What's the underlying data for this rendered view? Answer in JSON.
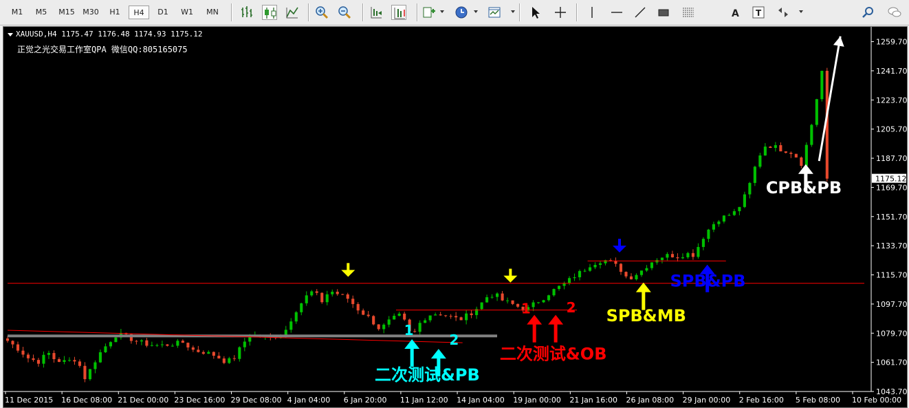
{
  "toolbar": {
    "timeframes": [
      "M1",
      "M5",
      "M15",
      "M30",
      "H1",
      "H4",
      "D1",
      "W1",
      "MN"
    ],
    "active_timeframe": "H4",
    "icons": [
      "bar-chart-icon",
      "candlestick-icon",
      "line-chart-icon",
      "zoom-in-icon",
      "zoom-out-icon",
      "chart-shift-icon",
      "autoscroll-icon",
      "indicators-icon",
      "periods-icon",
      "templates-icon",
      "cursor-icon",
      "crosshair-icon",
      "vertical-line-icon",
      "horizontal-line-icon",
      "trendline-icon",
      "rectangle-icon",
      "fibonacci-icon",
      "text-icon",
      "text-label-icon",
      "arrows-icon",
      "search-icon",
      "chat-icon"
    ]
  },
  "chart_header": {
    "symbol_line": "XAUUSD,H4  1175.47 1176.48 1174.93 1175.12",
    "watermark": "正觉之光交易工作室QPA 微信QQ:805165075"
  },
  "chart_data": {
    "type": "candlestick",
    "symbol": "XAUUSD",
    "timeframe": "H4",
    "ohlc_last": {
      "open": 1175.47,
      "high": 1176.48,
      "low": 1174.93,
      "close": 1175.12
    },
    "current_price": 1175.12,
    "ylim": [
      1043.7,
      1268.0
    ],
    "y_ticks": [
      1259.7,
      1241.7,
      1223.7,
      1205.7,
      1187.7,
      1169.7,
      1151.7,
      1133.7,
      1115.7,
      1097.7,
      1079.7,
      1061.7,
      1043.7
    ],
    "x_ticks": [
      "11 Dec 2015",
      "16 Dec 08:00",
      "21 Dec 00:00",
      "23 Dec 16:00",
      "29 Dec 08:00",
      "4 Jan 04:00",
      "6 Jan 20:00",
      "11 Jan 12:00",
      "14 Jan 04:00",
      "19 Jan 00:00",
      "21 Jan 16:00",
      "26 Jan 08:00",
      "29 Jan 00:00",
      "2 Feb 16:00",
      "5 Feb 08:00",
      "10 Feb 00:00"
    ],
    "bars_count": 160,
    "close_path": [
      [
        0,
        1075
      ],
      [
        4,
        1070
      ],
      [
        8,
        1064
      ],
      [
        12,
        1062
      ],
      [
        15,
        1068
      ],
      [
        18,
        1063
      ],
      [
        22,
        1062
      ],
      [
        26,
        1064
      ],
      [
        29,
        1052
      ],
      [
        31,
        1057
      ],
      [
        34,
        1066
      ],
      [
        38,
        1074
      ],
      [
        41,
        1079
      ],
      [
        44,
        1078
      ],
      [
        48,
        1075
      ],
      [
        52,
        1073
      ],
      [
        57,
        1072
      ],
      [
        62,
        1073
      ],
      [
        66,
        1074
      ],
      [
        70,
        1069
      ],
      [
        74,
        1068
      ],
      [
        78,
        1066
      ],
      [
        82,
        1062
      ],
      [
        85,
        1064
      ],
      [
        88,
        1072
      ],
      [
        91,
        1079
      ],
      [
        94,
        1078
      ],
      [
        98,
        1077
      ],
      [
        101,
        1078
      ],
      [
        104,
        1080
      ],
      [
        108,
        1093
      ],
      [
        112,
        1102
      ],
      [
        115,
        1106
      ],
      [
        118,
        1099
      ],
      [
        121,
        1106
      ],
      [
        124,
        1104
      ],
      [
        128,
        1101
      ],
      [
        132,
        1094
      ],
      [
        136,
        1089
      ],
      [
        140,
        1082
      ],
      [
        144,
        1088
      ],
      [
        148,
        1091
      ],
      [
        152,
        1077
      ],
      [
        155,
        1086
      ],
      [
        158,
        1091
      ],
      [
        162,
        1092
      ],
      [
        166,
        1090
      ],
      [
        170,
        1088
      ],
      [
        174,
        1092
      ],
      [
        177,
        1096
      ],
      [
        180,
        1102
      ],
      [
        183,
        1104
      ],
      [
        186,
        1100
      ],
      [
        189,
        1098
      ],
      [
        192,
        1096
      ],
      [
        195,
        1094
      ],
      [
        198,
        1098
      ],
      [
        201,
        1101
      ],
      [
        204,
        1105
      ],
      [
        207,
        1108
      ],
      [
        210,
        1111
      ],
      [
        213,
        1115
      ],
      [
        216,
        1118
      ],
      [
        219,
        1122
      ],
      [
        222,
        1124
      ],
      [
        224,
        1125
      ],
      [
        226,
        1124
      ],
      [
        228,
        1122
      ],
      [
        230,
        1120
      ],
      [
        232,
        1115
      ],
      [
        234,
        1114
      ],
      [
        236,
        1116
      ],
      [
        238,
        1118
      ],
      [
        240,
        1121
      ],
      [
        243,
        1125
      ],
      [
        246,
        1127
      ],
      [
        249,
        1128
      ],
      [
        252,
        1127
      ],
      [
        255,
        1129
      ],
      [
        258,
        1128
      ],
      [
        261,
        1138
      ],
      [
        264,
        1145
      ],
      [
        267,
        1150
      ],
      [
        270,
        1152
      ],
      [
        273,
        1154
      ],
      [
        276,
        1160
      ],
      [
        279,
        1172
      ],
      [
        282,
        1188
      ],
      [
        285,
        1196
      ],
      [
        288,
        1195
      ],
      [
        291,
        1193
      ],
      [
        294,
        1192
      ],
      [
        297,
        1188
      ],
      [
        298,
        1182
      ],
      [
        299,
        1190
      ],
      [
        301,
        1199
      ],
      [
        303,
        1215
      ],
      [
        305,
        1232
      ],
      [
        307,
        1250
      ],
      [
        308,
        1242
      ]
    ],
    "horizontal_lines": [
      {
        "color": "#ff0000",
        "price": 1110.5,
        "from_index": 0,
        "to_index": 322
      },
      {
        "color": "#808080",
        "price": 1078.0,
        "from_index": 0,
        "to_index": 184,
        "width": 4
      },
      {
        "color": "#ff0000",
        "price": 1094.0,
        "from_index": 146,
        "to_index": 214
      },
      {
        "color": "#ff0000",
        "price": 1124.3,
        "from_index": 218,
        "to_index": 270
      }
    ],
    "trendlines": [
      {
        "color": "#ff0000",
        "from": [
          0,
          1081.5
        ],
        "to": [
          171,
          1073.8
        ]
      },
      {
        "color": "#ffffff",
        "from": [
          305,
          1186
        ],
        "to": [
          313,
          1263
        ],
        "arrow": true
      }
    ],
    "arrow_marks": [
      {
        "color": "#ffff00",
        "direction": "down",
        "index": 128,
        "price": 1114.5
      },
      {
        "color": "#ffff00",
        "direction": "down",
        "index": 189,
        "price": 1111.0
      },
      {
        "color": "#0000ff",
        "direction": "down",
        "index": 230,
        "price": 1129.5
      },
      {
        "color": "#00ffff",
        "direction": "up",
        "index": 152,
        "price": 1076.0
      },
      {
        "color": "#00ffff",
        "direction": "up",
        "index": 162,
        "price": 1070.0
      },
      {
        "color": "#ff0000",
        "direction": "up",
        "index": 198,
        "price": 1091.0
      },
      {
        "color": "#ff0000",
        "direction": "up",
        "index": 206,
        "price": 1091.0
      },
      {
        "color": "#ffff00",
        "direction": "up",
        "index": 239,
        "price": 1111.0
      },
      {
        "color": "#0000ff",
        "direction": "up",
        "index": 263,
        "price": 1122.0
      },
      {
        "color": "#ffffff",
        "direction": "up",
        "index": 300,
        "price": 1184.0
      }
    ],
    "annotations": [
      {
        "text": "1",
        "color": "#00ffff",
        "index": 149,
        "price": 1078.5
      },
      {
        "text": "2",
        "color": "#00ffff",
        "index": 166,
        "price": 1072.5
      },
      {
        "text": "二次测试&PB",
        "color": "#00ffff",
        "index": 138,
        "price": 1050.5
      },
      {
        "text": "1",
        "color": "#ff0000",
        "index": 193,
        "price": 1092.0
      },
      {
        "text": "2",
        "color": "#ff0000",
        "index": 210,
        "price": 1092.5
      },
      {
        "text": "二次测试&OB",
        "color": "#ff0000",
        "index": 185,
        "price": 1063.5
      },
      {
        "text": "SPB&MB",
        "color": "#ffff00",
        "index": 225,
        "price": 1087.0
      },
      {
        "text": "SPB&PB",
        "color": "#0000ff",
        "index": 249,
        "price": 1108.5
      },
      {
        "text": "CPB&PB",
        "color": "#ffffff",
        "index": 285,
        "price": 1166.0
      }
    ]
  },
  "colors": {
    "background": "#000000",
    "bull": "#00c000",
    "bear": "#e8492d",
    "axis": "#ffffff",
    "price_badge_bg": "#ffffff",
    "price_badge_fg": "#000000"
  }
}
